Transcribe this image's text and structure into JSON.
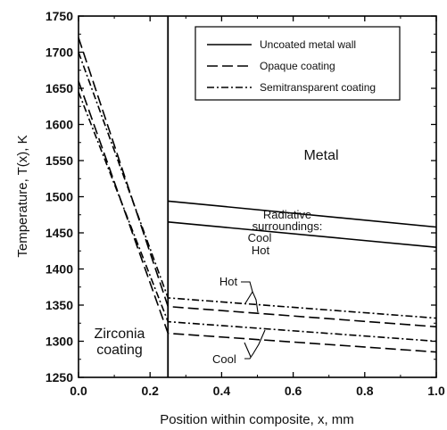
{
  "chart_data": {
    "type": "line",
    "title": "",
    "xlabel": "Position within composite, x, mm",
    "ylabel": "Temperature, T(x), K",
    "xlim": [
      0.0,
      1.0
    ],
    "ylim": [
      1250,
      1750
    ],
    "x_ticks": [
      "0.0",
      "0.2",
      "0.4",
      "0.6",
      "0.8",
      "1.0"
    ],
    "y_ticks": [
      "1250",
      "1300",
      "1350",
      "1400",
      "1450",
      "1500",
      "1550",
      "1600",
      "1650",
      "1700",
      "1750"
    ],
    "grid": false,
    "legend_position": "top-right",
    "interface_x": 0.25,
    "legend": [
      {
        "label": "Uncoated metal wall",
        "style": "solid"
      },
      {
        "label": "Opaque coating",
        "style": "dashed"
      },
      {
        "label": "Semitransparent coating",
        "style": "dashdot"
      }
    ],
    "series": [
      {
        "name": "Uncoated metal wall",
        "style": "solid",
        "surroundings": "hot",
        "x": [
          0.25,
          1.0
        ],
        "y": [
          1494,
          1458
        ]
      },
      {
        "name": "Uncoated metal wall",
        "style": "solid",
        "surroundings": "cool",
        "x": [
          0.25,
          1.0
        ],
        "y": [
          1465,
          1430
        ]
      },
      {
        "name": "Opaque coating",
        "style": "dashed",
        "surroundings": "hot",
        "x": [
          0.0,
          0.25,
          1.0
        ],
        "y": [
          1720,
          1348,
          1320
        ]
      },
      {
        "name": "Opaque coating",
        "style": "dashed",
        "surroundings": "cool",
        "x": [
          0.0,
          0.25,
          1.0
        ],
        "y": [
          1660,
          1311,
          1285
        ]
      },
      {
        "name": "Semitransparent coating",
        "style": "dashdot",
        "surroundings": "hot",
        "x": [
          0.0,
          0.25,
          1.0
        ],
        "y": [
          1700,
          1360,
          1332
        ]
      },
      {
        "name": "Semitransparent coating",
        "style": "dashdot",
        "surroundings": "cool",
        "x": [
          0.0,
          0.25,
          1.0
        ],
        "y": [
          1645,
          1327,
          1300
        ]
      }
    ],
    "annotations": {
      "metal": "Metal",
      "radiative_line1": "Radiative",
      "radiative_line2": "surroundings:",
      "hot_upper": "Hot",
      "cool_upper": "Cool",
      "hot_lower": "Hot",
      "cool_lower": "Cool",
      "zirconia_line1": "Zirconia",
      "zirconia_line2": "coating"
    }
  }
}
